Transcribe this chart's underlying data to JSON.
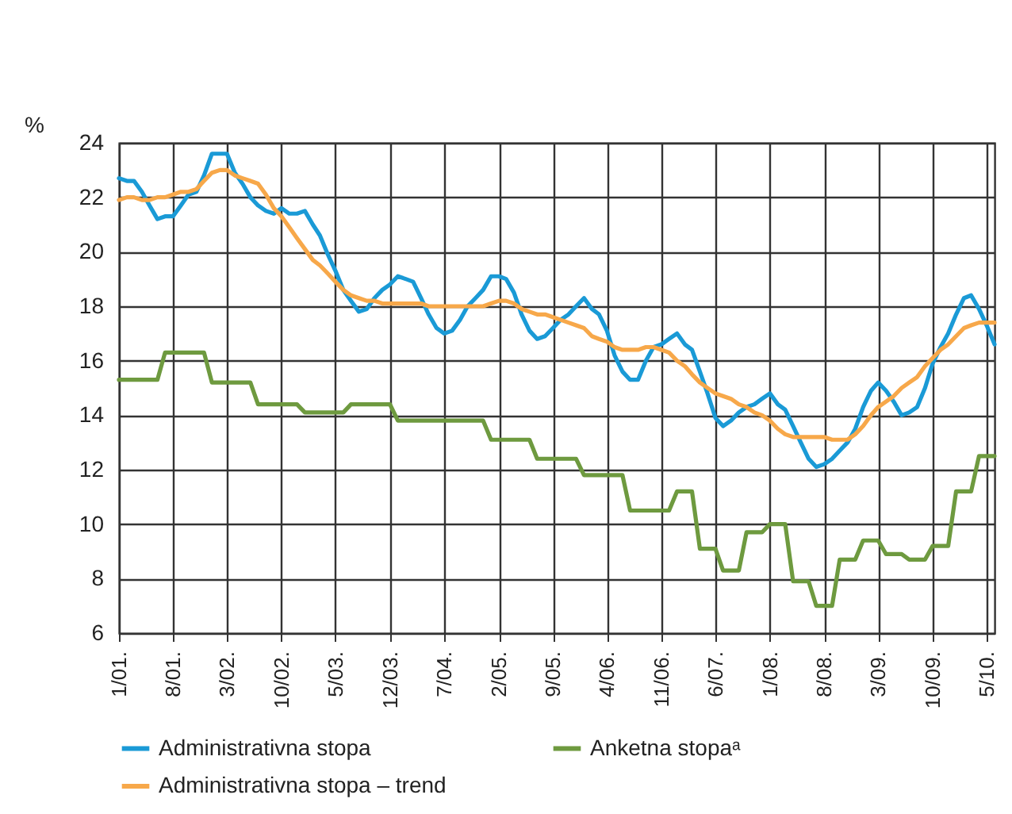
{
  "chart_data": {
    "type": "line",
    "ylabel": "%",
    "x": [
      "2001-01",
      "2001-02",
      "2001-03",
      "2001-04",
      "2001-05",
      "2001-06",
      "2001-07",
      "2001-08",
      "2001-09",
      "2001-10",
      "2001-11",
      "2001-12",
      "2002-01",
      "2002-02",
      "2002-03",
      "2002-04",
      "2002-05",
      "2002-06",
      "2002-07",
      "2002-08",
      "2002-09",
      "2002-10",
      "2002-11",
      "2002-12",
      "2003-01",
      "2003-02",
      "2003-03",
      "2003-04",
      "2003-05",
      "2003-06",
      "2003-07",
      "2003-08",
      "2003-09",
      "2003-10",
      "2003-11",
      "2003-12",
      "2004-01",
      "2004-02",
      "2004-03",
      "2004-04",
      "2004-05",
      "2004-06",
      "2004-07",
      "2004-08",
      "2004-09",
      "2004-10",
      "2004-11",
      "2004-12",
      "2005-01",
      "2005-02",
      "2005-03",
      "2005-04",
      "2005-05",
      "2005-06",
      "2005-07",
      "2005-08",
      "2005-09",
      "2005-10",
      "2005-11",
      "2005-12",
      "2006-01",
      "2006-02",
      "2006-03",
      "2006-04",
      "2006-05",
      "2006-06",
      "2006-07",
      "2006-08",
      "2006-09",
      "2006-10",
      "2006-11",
      "2006-12",
      "2007-01",
      "2007-02",
      "2007-03",
      "2007-04",
      "2007-05",
      "2007-06",
      "2007-07",
      "2007-08",
      "2007-09",
      "2007-10",
      "2007-11",
      "2007-12",
      "2008-01",
      "2008-02",
      "2008-03",
      "2008-04",
      "2008-05",
      "2008-06",
      "2008-07",
      "2008-08",
      "2008-09",
      "2008-10",
      "2008-11",
      "2008-12",
      "2009-01",
      "2009-02",
      "2009-03",
      "2009-04",
      "2009-05",
      "2009-06",
      "2009-07",
      "2009-08",
      "2009-09",
      "2009-10",
      "2009-11",
      "2009-12",
      "2010-01",
      "2010-02",
      "2010-03",
      "2010-04",
      "2010-05",
      "2010-06"
    ],
    "series": [
      {
        "name": "Administrativna stopa",
        "type": "line",
        "color": "#1a9ad6",
        "values": [
          22.7,
          22.6,
          22.6,
          22.2,
          21.7,
          21.2,
          21.3,
          21.3,
          21.7,
          22.1,
          22.2,
          22.8,
          23.6,
          23.6,
          23.6,
          22.9,
          22.5,
          22.0,
          21.7,
          21.5,
          21.4,
          21.6,
          21.4,
          21.4,
          21.5,
          21.0,
          20.6,
          19.9,
          19.3,
          18.6,
          18.2,
          17.8,
          17.9,
          18.3,
          18.6,
          18.8,
          19.1,
          19.0,
          18.9,
          18.3,
          17.7,
          17.2,
          17.0,
          17.1,
          17.5,
          18.0,
          18.3,
          18.6,
          19.1,
          19.1,
          19.0,
          18.5,
          17.7,
          17.1,
          16.8,
          16.9,
          17.2,
          17.5,
          17.7,
          18.0,
          18.3,
          17.9,
          17.7,
          17.1,
          16.2,
          15.6,
          15.3,
          15.3,
          16.0,
          16.5,
          16.6,
          16.8,
          17.0,
          16.6,
          16.4,
          15.6,
          14.8,
          13.9,
          13.6,
          13.8,
          14.1,
          14.3,
          14.4,
          14.6,
          14.8,
          14.4,
          14.2,
          13.6,
          13.0,
          12.4,
          12.1,
          12.2,
          12.4,
          12.7,
          13.0,
          13.5,
          14.3,
          14.9,
          15.2,
          14.9,
          14.5,
          14.0,
          14.1,
          14.3,
          15.0,
          15.9,
          16.5,
          17.0,
          17.7,
          18.3,
          18.4,
          17.9,
          17.3,
          16.6
        ]
      },
      {
        "name": "Anketna stopaᵃ",
        "type": "line",
        "color": "#6e9a3f",
        "values": [
          15.3,
          15.3,
          15.3,
          15.3,
          15.3,
          15.3,
          16.3,
          16.3,
          16.3,
          16.3,
          16.3,
          16.3,
          15.2,
          15.2,
          15.2,
          15.2,
          15.2,
          15.2,
          14.4,
          14.4,
          14.4,
          14.4,
          14.4,
          14.4,
          14.1,
          14.1,
          14.1,
          14.1,
          14.1,
          14.1,
          14.4,
          14.4,
          14.4,
          14.4,
          14.4,
          14.4,
          13.8,
          13.8,
          13.8,
          13.8,
          13.8,
          13.8,
          13.8,
          13.8,
          13.8,
          13.8,
          13.8,
          13.8,
          13.1,
          13.1,
          13.1,
          13.1,
          13.1,
          13.1,
          12.4,
          12.4,
          12.4,
          12.4,
          12.4,
          12.4,
          11.8,
          11.8,
          11.8,
          11.8,
          11.8,
          11.8,
          10.5,
          10.5,
          10.5,
          10.5,
          10.5,
          10.5,
          11.2,
          11.2,
          11.2,
          9.1,
          9.1,
          9.1,
          8.3,
          8.3,
          8.3,
          9.7,
          9.7,
          9.7,
          10.0,
          10.0,
          10.0,
          7.9,
          7.9,
          7.9,
          7.0,
          7.0,
          7.0,
          8.7,
          8.7,
          8.7,
          9.4,
          9.4,
          9.4,
          8.9,
          8.9,
          8.9,
          8.7,
          8.7,
          8.7,
          9.2,
          9.2,
          9.2,
          11.2,
          11.2,
          11.2,
          12.5,
          12.5,
          12.5
        ]
      },
      {
        "name": "Administrativna stopa – trend",
        "type": "line",
        "color": "#f7a84a",
        "values": [
          21.9,
          22.0,
          22.0,
          21.9,
          21.9,
          22.0,
          22.0,
          22.1,
          22.2,
          22.2,
          22.3,
          22.6,
          22.9,
          23.0,
          23.0,
          22.8,
          22.7,
          22.6,
          22.5,
          22.1,
          21.6,
          21.3,
          20.9,
          20.5,
          20.1,
          19.7,
          19.5,
          19.2,
          18.9,
          18.6,
          18.4,
          18.3,
          18.2,
          18.2,
          18.1,
          18.1,
          18.1,
          18.1,
          18.1,
          18.1,
          18.0,
          18.0,
          18.0,
          18.0,
          18.0,
          18.0,
          18.0,
          18.0,
          18.1,
          18.2,
          18.2,
          18.1,
          17.9,
          17.8,
          17.7,
          17.7,
          17.6,
          17.5,
          17.4,
          17.3,
          17.2,
          16.9,
          16.8,
          16.7,
          16.5,
          16.4,
          16.4,
          16.4,
          16.5,
          16.5,
          16.4,
          16.3,
          16.0,
          15.8,
          15.5,
          15.2,
          15.0,
          14.8,
          14.7,
          14.6,
          14.4,
          14.3,
          14.1,
          14.0,
          13.8,
          13.5,
          13.3,
          13.2,
          13.2,
          13.2,
          13.2,
          13.2,
          13.1,
          13.1,
          13.1,
          13.3,
          13.6,
          14.0,
          14.3,
          14.5,
          14.7,
          15.0,
          15.2,
          15.4,
          15.8,
          16.1,
          16.4,
          16.6,
          16.9,
          17.2,
          17.3,
          17.4,
          17.4,
          17.4
        ]
      }
    ],
    "xlim": [
      "2001-01",
      "2010-06"
    ],
    "xticks": [
      {
        "value": "2001-01",
        "label": "1/01."
      },
      {
        "value": "2001-08",
        "label": "8/01."
      },
      {
        "value": "2002-03",
        "label": "3/02."
      },
      {
        "value": "2002-10",
        "label": "10/02."
      },
      {
        "value": "2003-05",
        "label": "5/03."
      },
      {
        "value": "2003-12",
        "label": "12/03."
      },
      {
        "value": "2004-07",
        "label": "7/04."
      },
      {
        "value": "2005-02",
        "label": "2/05."
      },
      {
        "value": "2005-09",
        "label": "9/05."
      },
      {
        "value": "2006-04",
        "label": "4/06."
      },
      {
        "value": "2006-11",
        "label": "11/06."
      },
      {
        "value": "2007-06",
        "label": "6/07."
      },
      {
        "value": "2008-01",
        "label": "1/08."
      },
      {
        "value": "2008-08",
        "label": "8/08."
      },
      {
        "value": "2009-03",
        "label": "3/09."
      },
      {
        "value": "2009-10",
        "label": "10/09."
      },
      {
        "value": "2010-05",
        "label": "5/10."
      }
    ],
    "ylim": [
      6,
      24
    ],
    "yticks": [
      6,
      8,
      10,
      12,
      14,
      16,
      18,
      20,
      22,
      24
    ],
    "grid": true,
    "legend": "bottom",
    "marker": "none",
    "line_style": "solid"
  }
}
